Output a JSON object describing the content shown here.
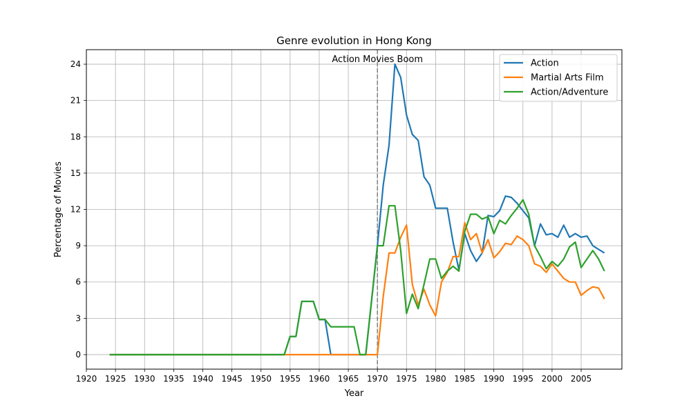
{
  "chart_data": {
    "type": "line",
    "title": "Genre evolution in Hong Kong",
    "xlabel": "Year",
    "ylabel": "Percentage of Movies",
    "xlim": [
      1920,
      2012
    ],
    "ylim": [
      -1.2,
      25.2
    ],
    "xticks": [
      1920,
      1925,
      1930,
      1935,
      1940,
      1945,
      1950,
      1955,
      1960,
      1965,
      1970,
      1975,
      1980,
      1985,
      1990,
      1995,
      2000,
      2005
    ],
    "yticks": [
      0,
      3,
      6,
      9,
      12,
      15,
      18,
      21,
      24
    ],
    "grid": true,
    "legend_position": "top-right",
    "annotation": {
      "text": "Action Movies Boom",
      "x": 1970
    },
    "x": [
      1924,
      1925,
      1926,
      1927,
      1928,
      1929,
      1930,
      1931,
      1932,
      1933,
      1934,
      1935,
      1936,
      1937,
      1938,
      1939,
      1940,
      1941,
      1942,
      1943,
      1944,
      1945,
      1946,
      1947,
      1948,
      1949,
      1950,
      1951,
      1952,
      1953,
      1954,
      1955,
      1956,
      1957,
      1958,
      1959,
      1960,
      1961,
      1962,
      1963,
      1964,
      1965,
      1966,
      1967,
      1968,
      1969,
      1970,
      1971,
      1972,
      1973,
      1974,
      1975,
      1976,
      1977,
      1978,
      1979,
      1980,
      1981,
      1982,
      1983,
      1984,
      1985,
      1986,
      1987,
      1988,
      1989,
      1990,
      1991,
      1992,
      1993,
      1994,
      1995,
      1996,
      1997,
      1998,
      1999,
      2000,
      2001,
      2002,
      2003,
      2004,
      2005,
      2006,
      2007,
      2008,
      2009
    ],
    "series": [
      {
        "name": "Action",
        "color": "#1f77b4",
        "values": [
          0,
          0,
          0,
          0,
          0,
          0,
          0,
          0,
          0,
          0,
          0,
          0,
          0,
          0,
          0,
          0,
          0,
          0,
          0,
          0,
          0,
          0,
          0,
          0,
          0,
          0,
          0,
          0,
          0,
          0,
          0,
          1.5,
          1.5,
          4.4,
          4.4,
          4.4,
          2.9,
          2.9,
          0,
          0,
          0,
          0,
          0,
          0,
          0,
          4.5,
          9.0,
          14.0,
          17.3,
          24.0,
          22.9,
          19.8,
          18.2,
          17.7,
          14.7,
          14.0,
          12.1,
          12.1,
          12.1,
          9.3,
          7.0,
          10.0,
          8.6,
          7.7,
          8.4,
          11.5,
          11.4,
          11.9,
          13.1,
          13.0,
          12.5,
          11.9,
          11.3,
          9.0,
          10.8,
          9.9,
          10.0,
          9.7,
          10.7,
          9.7,
          10.0,
          9.7,
          9.8,
          9.0,
          8.7,
          8.4
        ]
      },
      {
        "name": "Martial Arts Film",
        "color": "#ff7f0e",
        "values": [
          0,
          0,
          0,
          0,
          0,
          0,
          0,
          0,
          0,
          0,
          0,
          0,
          0,
          0,
          0,
          0,
          0,
          0,
          0,
          0,
          0,
          0,
          0,
          0,
          0,
          0,
          0,
          0,
          0,
          0,
          0,
          0,
          0,
          0,
          0,
          0,
          0,
          0,
          0,
          0,
          0,
          0,
          0,
          0,
          0,
          0,
          0,
          4.8,
          8.4,
          8.4,
          9.7,
          10.7,
          5.8,
          4.1,
          5.4,
          4.1,
          3.2,
          6.0,
          6.8,
          8.1,
          8.1,
          10.9,
          9.5,
          10.0,
          8.4,
          9.5,
          8.0,
          8.5,
          9.2,
          9.1,
          9.8,
          9.5,
          9.0,
          7.5,
          7.3,
          6.8,
          7.5,
          6.9,
          6.3,
          6.0,
          6.0,
          4.9,
          5.3,
          5.6,
          5.5,
          4.6
        ]
      },
      {
        "name": "Action/Adventure",
        "color": "#2ca02c",
        "values": [
          0,
          0,
          0,
          0,
          0,
          0,
          0,
          0,
          0,
          0,
          0,
          0,
          0,
          0,
          0,
          0,
          0,
          0,
          0,
          0,
          0,
          0,
          0,
          0,
          0,
          0,
          0,
          0,
          0,
          0,
          0,
          1.5,
          1.5,
          4.4,
          4.4,
          4.4,
          2.9,
          2.9,
          2.3,
          2.3,
          2.3,
          2.3,
          2.3,
          0,
          0,
          4.5,
          9.0,
          9.0,
          12.3,
          12.3,
          8.6,
          3.4,
          5.0,
          3.8,
          5.8,
          7.9,
          7.9,
          6.3,
          6.9,
          7.3,
          6.9,
          10.2,
          11.6,
          11.6,
          11.2,
          11.4,
          10.0,
          11.1,
          10.8,
          11.5,
          12.1,
          12.8,
          11.6,
          9.0,
          8.1,
          7.1,
          7.7,
          7.3,
          7.9,
          8.9,
          9.3,
          7.2,
          7.9,
          8.6,
          7.9,
          6.9
        ]
      }
    ]
  }
}
